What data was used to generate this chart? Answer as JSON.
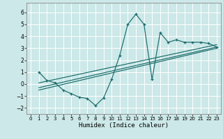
{
  "title": "",
  "xlabel": "Humidex (Indice chaleur)",
  "ylabel": "",
  "bg_color": "#cce8e8",
  "grid_color": "#b0d4d4",
  "line_color": "#1a6b6b",
  "xlim": [
    -0.5,
    23.5
  ],
  "ylim": [
    -2.5,
    6.8
  ],
  "xticks": [
    0,
    1,
    2,
    3,
    4,
    5,
    6,
    7,
    8,
    9,
    10,
    11,
    12,
    13,
    14,
    15,
    16,
    17,
    18,
    19,
    20,
    21,
    22,
    23
  ],
  "yticks": [
    -2,
    -1,
    0,
    1,
    2,
    3,
    4,
    5,
    6
  ],
  "data_x": [
    1,
    2,
    3,
    4,
    5,
    6,
    7,
    8,
    9,
    10,
    11,
    12,
    13,
    14,
    15,
    16,
    17,
    18,
    19,
    20,
    21,
    22,
    23
  ],
  "data_y": [
    1.0,
    0.3,
    0.1,
    -0.5,
    -0.8,
    -1.1,
    -1.2,
    -1.8,
    -1.15,
    0.4,
    2.4,
    5.0,
    5.85,
    5.0,
    0.4,
    4.3,
    3.5,
    3.7,
    3.5,
    3.5,
    3.5,
    3.4,
    3.1
  ],
  "reg_lines": [
    {
      "x": [
        1,
        23
      ],
      "y": [
        -0.3,
        3.1
      ]
    },
    {
      "x": [
        1,
        23
      ],
      "y": [
        0.1,
        3.3
      ]
    },
    {
      "x": [
        1,
        23
      ],
      "y": [
        -0.5,
        3.0
      ]
    }
  ]
}
